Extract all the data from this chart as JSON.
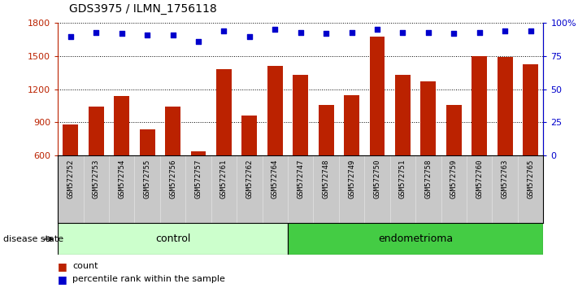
{
  "title": "GDS3975 / ILMN_1756118",
  "samples": [
    "GSM572752",
    "GSM572753",
    "GSM572754",
    "GSM572755",
    "GSM572756",
    "GSM572757",
    "GSM572761",
    "GSM572762",
    "GSM572764",
    "GSM572747",
    "GSM572748",
    "GSM572749",
    "GSM572750",
    "GSM572751",
    "GSM572758",
    "GSM572759",
    "GSM572760",
    "GSM572763",
    "GSM572765"
  ],
  "counts": [
    880,
    1040,
    1140,
    840,
    1040,
    640,
    1380,
    960,
    1410,
    1330,
    1060,
    1150,
    1680,
    1330,
    1270,
    1060,
    1500,
    1490,
    1430
  ],
  "percentiles": [
    90,
    93,
    92,
    91,
    91,
    86,
    94,
    90,
    95,
    93,
    92,
    93,
    95,
    93,
    93,
    92,
    93,
    94,
    94
  ],
  "n_control": 9,
  "n_endometrioma": 10,
  "ylim_left": [
    600,
    1800
  ],
  "ylim_right": [
    0,
    100
  ],
  "yticks_left": [
    600,
    900,
    1200,
    1500,
    1800
  ],
  "yticks_right": [
    0,
    25,
    50,
    75,
    100
  ],
  "bar_color": "#bb2200",
  "dot_color": "#0000cc",
  "control_color_light": "#ccffcc",
  "endometrioma_color": "#44cc44",
  "xtick_bg_color": "#c8c8c8",
  "legend_count_label": "count",
  "legend_pct_label": "percentile rank within the sample",
  "disease_state_label": "disease state",
  "control_label": "control",
  "endometrioma_label": "endometrioma"
}
